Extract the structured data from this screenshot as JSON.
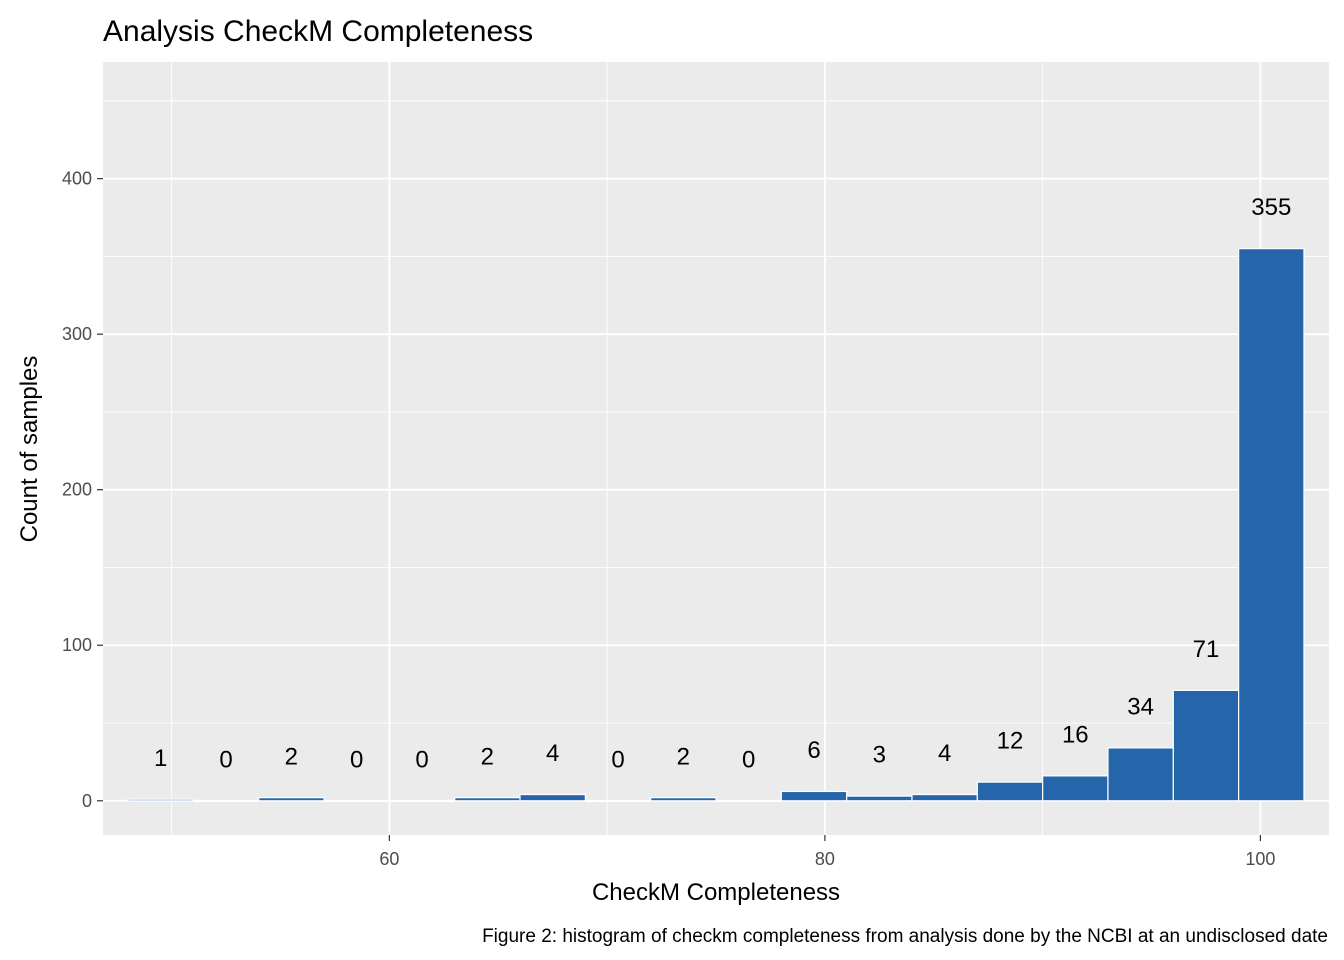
{
  "chart_data": {
    "type": "bar",
    "title": "Analysis CheckM Completeness",
    "xlabel": "CheckM Completeness",
    "ylabel": "Count of samples",
    "caption": "Figure 2: histogram of checkm completeness from analysis done by the NCBI at an undisclosed date",
    "bin_width": 3,
    "bins": [
      {
        "x": 49.5,
        "count": 1,
        "label": "1"
      },
      {
        "x": 52.5,
        "count": 0,
        "label": "0"
      },
      {
        "x": 55.5,
        "count": 2,
        "label": "2"
      },
      {
        "x": 58.5,
        "count": 0,
        "label": "0"
      },
      {
        "x": 61.5,
        "count": 0,
        "label": "0"
      },
      {
        "x": 64.5,
        "count": 2,
        "label": "2"
      },
      {
        "x": 67.5,
        "count": 4,
        "label": "4"
      },
      {
        "x": 70.5,
        "count": 0,
        "label": "0"
      },
      {
        "x": 73.5,
        "count": 2,
        "label": "2"
      },
      {
        "x": 76.5,
        "count": 0,
        "label": "0"
      },
      {
        "x": 79.5,
        "count": 6,
        "label": "6"
      },
      {
        "x": 82.5,
        "count": 3,
        "label": "3"
      },
      {
        "x": 85.5,
        "count": 4,
        "label": "4"
      },
      {
        "x": 88.5,
        "count": 12,
        "label": "12"
      },
      {
        "x": 91.5,
        "count": 16,
        "label": "16"
      },
      {
        "x": 94.5,
        "count": 34,
        "label": "34"
      },
      {
        "x": 97.5,
        "count": 71,
        "label": "71"
      },
      {
        "x": 100.5,
        "count": 355,
        "label": "355"
      }
    ],
    "xlim": [
      46.85,
      103.15
    ],
    "ylim": [
      -22,
      475
    ],
    "x_ticks": [
      {
        "v": 60,
        "label": "60"
      },
      {
        "v": 80,
        "label": "80"
      },
      {
        "v": 100,
        "label": "100"
      }
    ],
    "y_ticks": [
      {
        "v": 0,
        "label": "0"
      },
      {
        "v": 100,
        "label": "100"
      },
      {
        "v": 200,
        "label": "200"
      },
      {
        "v": 300,
        "label": "300"
      },
      {
        "v": 400,
        "label": "400"
      }
    ],
    "grid": true,
    "colors": {
      "panel": "#ebebeb",
      "grid": "#ffffff",
      "bar_fill": "#2566ab",
      "bar_stroke": "#ffffff"
    }
  }
}
